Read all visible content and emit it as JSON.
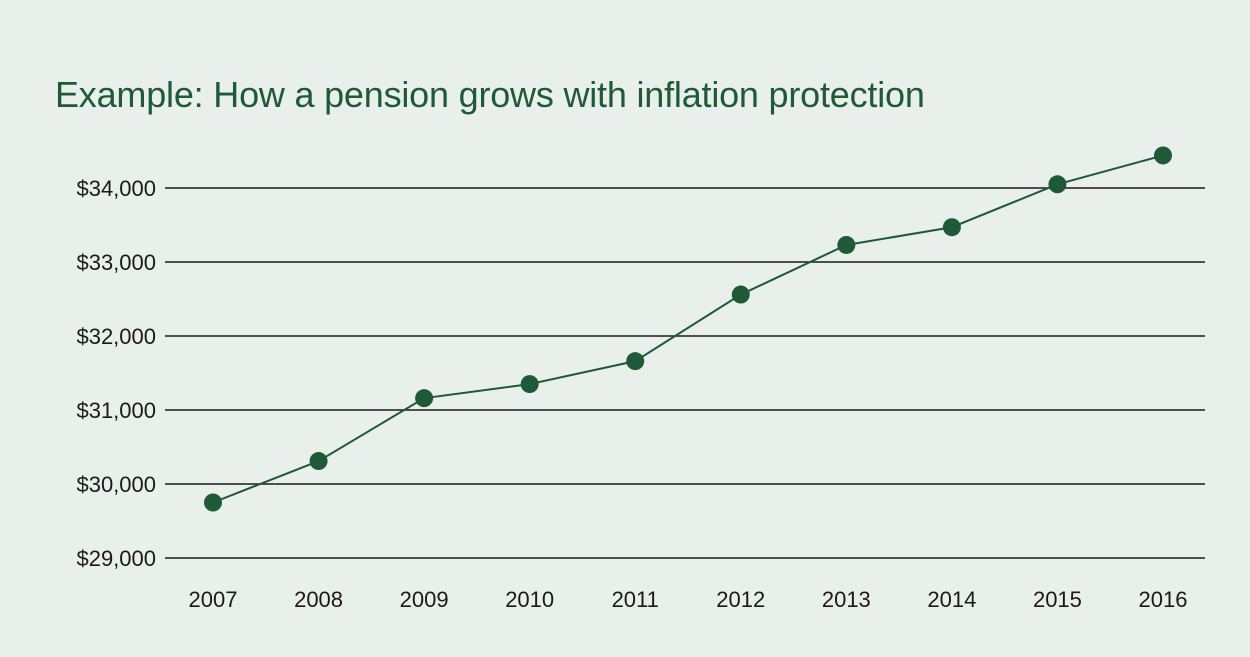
{
  "chart_data": {
    "type": "line",
    "title": "Example: How a pension grows with inflation protection",
    "xlabel": "",
    "ylabel": "",
    "categories": [
      "2007",
      "2008",
      "2009",
      "2010",
      "2011",
      "2012",
      "2013",
      "2014",
      "2015",
      "2016"
    ],
    "values": [
      29750,
      30310,
      31160,
      31350,
      31660,
      32560,
      33230,
      33470,
      34050,
      34440
    ],
    "ylim": [
      29000,
      34000
    ],
    "yticks": [
      29000,
      30000,
      31000,
      32000,
      33000,
      34000
    ],
    "ytick_labels": [
      "$29,000",
      "$30,000",
      "$31,000",
      "$32,000",
      "$33,000",
      "$34,000"
    ],
    "grid": "horizontal",
    "legend": "none",
    "colors": {
      "line": "#1e5a37",
      "marker": "#1e5a37",
      "grid": "#1a1a1a",
      "title": "#1e5a37",
      "background": "#e9efea"
    }
  }
}
